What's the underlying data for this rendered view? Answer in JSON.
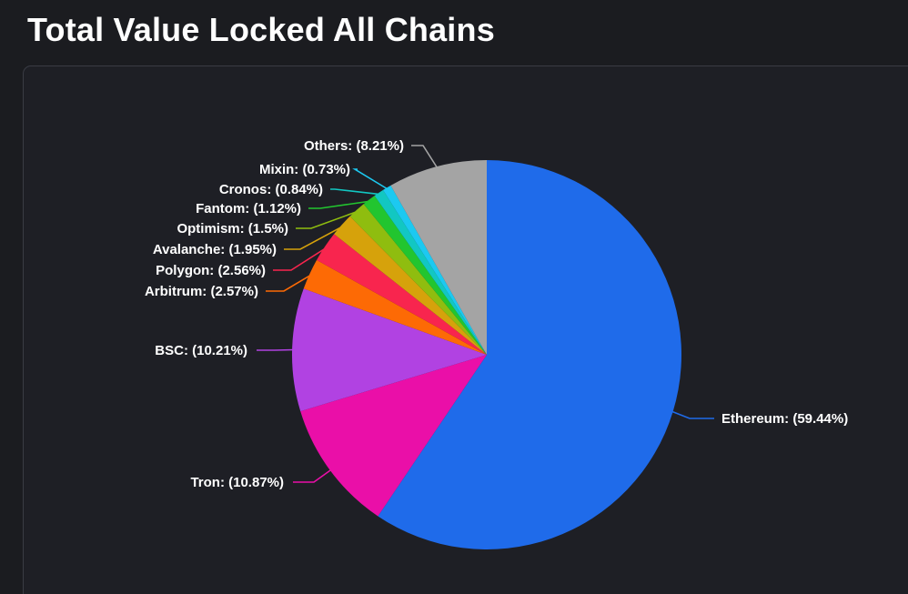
{
  "page": {
    "title": "Total Value Locked All Chains"
  },
  "chart_data": {
    "type": "pie",
    "title": "Total Value Locked All Chains",
    "unit": "%",
    "slices": [
      {
        "label": "Ethereum",
        "value": 59.44,
        "display": "Ethereum: (59.44%)",
        "color": "#1f6bea"
      },
      {
        "label": "Tron",
        "value": 10.87,
        "display": "Tron: (10.87%)",
        "color": "#ea0fa8"
      },
      {
        "label": "BSC",
        "value": 10.21,
        "display": "BSC: (10.21%)",
        "color": "#b142e2"
      },
      {
        "label": "Arbitrum",
        "value": 2.57,
        "display": "Arbitrum: (2.57%)",
        "color": "#fd6a05"
      },
      {
        "label": "Polygon",
        "value": 2.56,
        "display": "Polygon: (2.56%)",
        "color": "#f8254e"
      },
      {
        "label": "Avalanche",
        "value": 1.95,
        "display": "Avalanche: (1.95%)",
        "color": "#d6a20b"
      },
      {
        "label": "Optimism",
        "value": 1.5,
        "display": "Optimism: (1.5%)",
        "color": "#8fbd0f"
      },
      {
        "label": "Fantom",
        "value": 1.12,
        "display": "Fantom: (1.12%)",
        "color": "#22c52f"
      },
      {
        "label": "Cronos",
        "value": 0.84,
        "display": "Cronos: (0.84%)",
        "color": "#12c7c2"
      },
      {
        "label": "Mixin",
        "value": 0.73,
        "display": "Mixin: (0.73%)",
        "color": "#1cc9f1"
      },
      {
        "label": "Others",
        "value": 8.21,
        "display": "Others: (8.21%)",
        "color": "#a4a4a4"
      }
    ]
  }
}
